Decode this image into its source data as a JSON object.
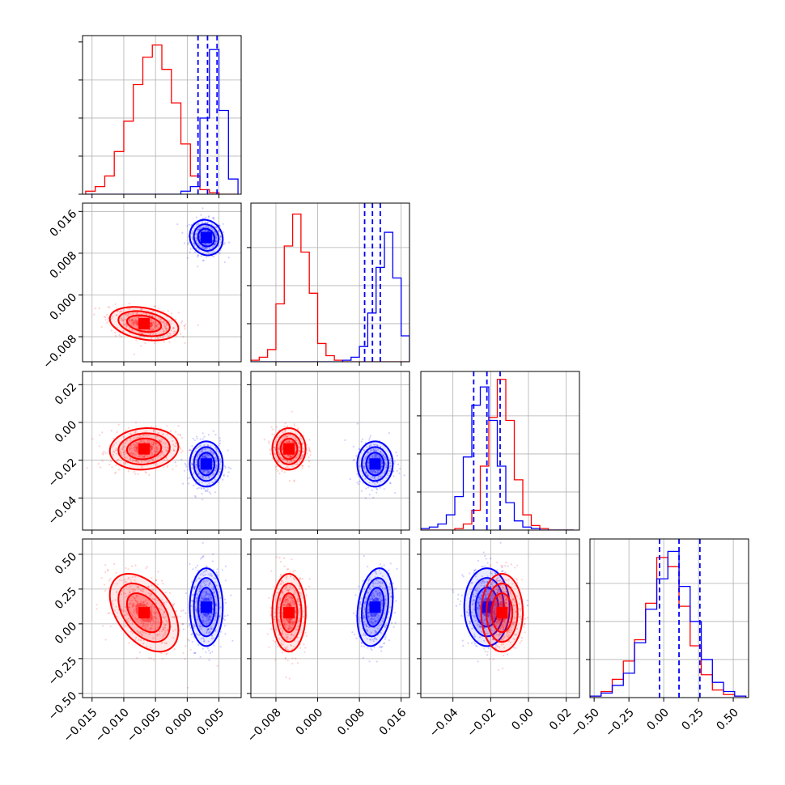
{
  "chart_data": {
    "type": "corner",
    "grid": true,
    "n_params": 4,
    "series": [
      {
        "name": "",
        "color": "#0000ff",
        "mean": [
          0.003,
          0.011,
          -0.022,
          0.12
        ],
        "std": [
          0.0013,
          0.0017,
          0.006,
          0.14
        ],
        "corr": [
          [
            1,
            -0.1,
            0,
            0
          ],
          [
            -0.1,
            1,
            0,
            0.25
          ],
          [
            0,
            0,
            1,
            0
          ],
          [
            0,
            0.25,
            0,
            1
          ]
        ]
      },
      {
        "name": "",
        "color": "#ff0000",
        "mean": [
          -0.0068,
          -0.0055,
          -0.014,
          0.08
        ],
        "std": [
          0.0027,
          0.0016,
          0.0055,
          0.14
        ],
        "corr": [
          [
            1,
            -0.3,
            0.1,
            -0.45
          ],
          [
            -0.3,
            1,
            0,
            0
          ],
          [
            0.1,
            0,
            1,
            0
          ],
          [
            -0.45,
            0,
            0,
            1
          ]
        ]
      }
    ],
    "quantile_lines": {
      "color": "#0000ff",
      "values": [
        [
          0.0017,
          0.0032,
          0.0047
        ],
        [
          0.009,
          0.0105,
          0.012
        ],
        [
          -0.029,
          -0.022,
          -0.015
        ],
        [
          -0.03,
          0.11,
          0.26
        ]
      ]
    },
    "diag_hist": [
      {
        "bins": [
          -0.016,
          -0.0145,
          -0.013,
          -0.0115,
          -0.01,
          -0.0085,
          -0.007,
          -0.0055,
          -0.004,
          -0.0025,
          -0.001,
          0.0005,
          0.002,
          0.0035,
          0.005,
          0.0065,
          0.008
        ],
        "blue": [
          0,
          0,
          0,
          0,
          0,
          0,
          0,
          0,
          0,
          0,
          0.02,
          0.05,
          0.5,
          0.95,
          0.55,
          0.1,
          0.01
        ],
        "red": [
          0.02,
          0.05,
          0.12,
          0.28,
          0.48,
          0.72,
          0.9,
          0.98,
          0.82,
          0.6,
          0.33,
          0.12,
          0.03,
          0.01,
          0,
          0,
          0
        ]
      },
      {
        "bins": [
          -0.0128,
          -0.0112,
          -0.0096,
          -0.008,
          -0.0064,
          -0.0048,
          -0.0032,
          -0.0016,
          0,
          0.0016,
          0.0032,
          0.0048,
          0.0064,
          0.008,
          0.0096,
          0.0112,
          0.0128,
          0.0144,
          0.016,
          0.0176
        ],
        "blue": [
          0,
          0,
          0,
          0,
          0,
          0,
          0,
          0,
          0,
          0,
          0,
          0.01,
          0.03,
          0.1,
          0.32,
          0.62,
          0.85,
          0.55,
          0.17,
          0.03
        ],
        "red": [
          0.01,
          0.03,
          0.08,
          0.38,
          0.76,
          0.97,
          0.72,
          0.45,
          0.12,
          0.04,
          0.01,
          0,
          0,
          0,
          0,
          0,
          0,
          0,
          0,
          0
        ]
      },
      {
        "bins": [
          -0.057,
          -0.0525,
          -0.048,
          -0.0435,
          -0.039,
          -0.0345,
          -0.03,
          -0.0255,
          -0.021,
          -0.0165,
          -0.012,
          -0.0075,
          -0.003,
          0.0015,
          0.006,
          0.0105,
          0.015,
          0.0195,
          0.024
        ],
        "blue": [
          0.01,
          0.02,
          0.04,
          0.1,
          0.22,
          0.48,
          0.82,
          0.94,
          0.72,
          0.42,
          0.18,
          0.06,
          0.02,
          0.01,
          0,
          0,
          0,
          0
        ],
        "red": [
          0,
          0,
          0,
          0,
          0.01,
          0.04,
          0.13,
          0.42,
          0.74,
          0.99,
          0.72,
          0.33,
          0.1,
          0.03,
          0.01,
          0,
          0,
          0
        ]
      },
      {
        "bins": [
          -0.53,
          -0.45,
          -0.37,
          -0.29,
          -0.21,
          -0.13,
          -0.05,
          0.03,
          0.11,
          0.19,
          0.27,
          0.35,
          0.43,
          0.51,
          0.59
        ],
        "blue": [
          0.01,
          0.03,
          0.08,
          0.16,
          0.36,
          0.58,
          0.78,
          0.96,
          0.73,
          0.5,
          0.25,
          0.1,
          0.04,
          0.01
        ],
        "red": [
          0.01,
          0.04,
          0.12,
          0.24,
          0.38,
          0.62,
          0.92,
          0.86,
          0.6,
          0.34,
          0.15,
          0.05,
          0.02,
          0.01
        ]
      }
    ],
    "axes": [
      {
        "range": [
          -0.0165,
          0.0085
        ],
        "ticks": [
          -0.015,
          -0.01,
          -0.005,
          0.0,
          0.005
        ],
        "tick_labels": [
          "−0.015",
          "−0.010",
          "−0.005",
          "0.000",
          "0.005"
        ]
      },
      {
        "range": [
          -0.0128,
          0.0176
        ],
        "ticks": [
          -0.008,
          0.0,
          0.008,
          0.016
        ],
        "tick_labels": [
          "−0.008",
          "0.000",
          "0.008",
          "0.016"
        ]
      },
      {
        "range": [
          -0.057,
          0.027
        ],
        "ticks": [
          -0.04,
          -0.02,
          0.0,
          0.02
        ],
        "tick_labels": [
          "−0.04",
          "−0.02",
          "0.00",
          "0.02"
        ]
      },
      {
        "range": [
          -0.53,
          0.61
        ],
        "ticks": [
          -0.5,
          -0.25,
          0.0,
          0.25,
          0.5
        ],
        "tick_labels": [
          "−0.50",
          "−0.25",
          "0.00",
          "0.25",
          "0.50"
        ]
      }
    ],
    "xlabel": "",
    "ylabel": "",
    "title": ""
  }
}
